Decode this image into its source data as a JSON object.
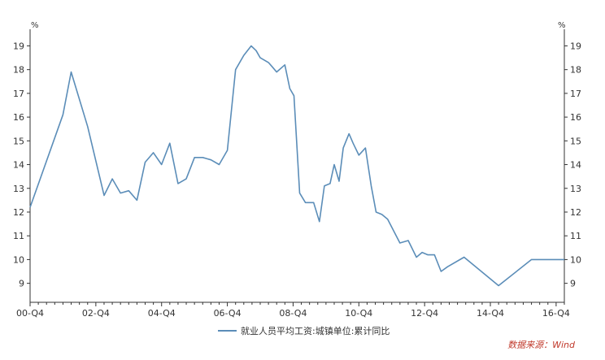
{
  "chart_data": {
    "type": "line",
    "left_unit": "%",
    "right_unit": "%",
    "ylim": [
      8.2,
      19.7
    ],
    "yticks": [
      9,
      10,
      11,
      12,
      13,
      14,
      15,
      16,
      17,
      18,
      19
    ],
    "x_tick_labels": [
      "00-Q4",
      "02-Q4",
      "04-Q4",
      "06-Q4",
      "08-Q4",
      "10-Q4",
      "12-Q4",
      "14-Q4",
      "16-Q4"
    ],
    "x_range": [
      0,
      65
    ],
    "grid": false,
    "legend_position": "bottom-center",
    "color": "#5b8db8",
    "series": [
      {
        "name": "就业人员平均工资:城镇单位:累计同比",
        "x": [
          0,
          4,
          5,
          7,
          9,
          10,
          11,
          12,
          13,
          14,
          15,
          16,
          17,
          18,
          19,
          20,
          21,
          22,
          23,
          24,
          25,
          26,
          26.9,
          27.5,
          28,
          29,
          29.5,
          30,
          31,
          31.6,
          32.1,
          32.8,
          33.5,
          34,
          34.5,
          35.2,
          35.8,
          36.5,
          37,
          37.6,
          38.1,
          38.8,
          39.3,
          40,
          40.8,
          41.5,
          42.1,
          42.8,
          43.5,
          45,
          46,
          47,
          47.7,
          48.4,
          49.2,
          50,
          50.8,
          52.8,
          57,
          61,
          65
        ],
        "y": [
          12.2,
          16.1,
          17.9,
          15.6,
          12.7,
          13.4,
          12.8,
          12.9,
          12.5,
          14.1,
          14.5,
          14.0,
          14.9,
          13.2,
          13.4,
          14.3,
          14.3,
          14.2,
          14.0,
          14.6,
          18.0,
          18.6,
          19.0,
          18.8,
          18.5,
          18.3,
          18.1,
          17.9,
          18.2,
          17.2,
          16.9,
          12.8,
          12.4,
          12.4,
          12.4,
          11.6,
          13.1,
          13.2,
          14.0,
          13.3,
          14.7,
          15.3,
          14.9,
          14.4,
          14.7,
          13.1,
          12.0,
          11.9,
          11.7,
          10.7,
          10.8,
          10.1,
          10.3,
          10.2,
          10.2,
          9.5,
          9.7,
          10.1,
          8.9,
          10.0,
          10.0
        ]
      }
    ],
    "source_note": "数据来源：Wind"
  }
}
